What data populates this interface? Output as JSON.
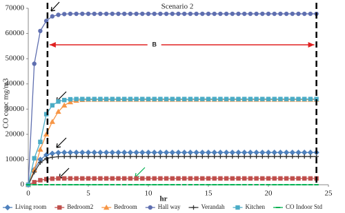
{
  "chart_data": {
    "type": "line",
    "title": "Scenario 2",
    "x_label": "hr",
    "y_label": "CO conc mg/m3",
    "annotation": "B",
    "x": [
      0,
      0.5,
      1,
      1.5,
      2,
      2.5,
      3,
      3.5,
      4,
      4.5,
      5,
      5.5,
      6,
      6.5,
      7,
      7.5,
      8,
      8.5,
      9,
      9.5,
      10,
      10.5,
      11,
      11.5,
      12,
      12.5,
      13,
      13.5,
      14,
      14.5,
      15,
      15.5,
      16,
      16.5,
      17,
      17.5,
      18,
      18.5,
      19,
      19.5,
      20,
      20.5,
      21,
      21.5,
      22,
      22.5,
      23,
      23.5,
      24
    ],
    "xlim": [
      0,
      25
    ],
    "xticks": [
      0,
      5,
      10,
      15,
      20,
      25
    ],
    "ylim": [
      0,
      70000
    ],
    "yticks": [
      0,
      10000,
      20000,
      30000,
      40000,
      50000,
      60000,
      70000
    ],
    "grid": false,
    "vlines": [
      1.6,
      24
    ],
    "series": [
      {
        "name": "Living room",
        "color": "#4f81bd",
        "marker": "diamond",
        "values": [
          0,
          6000,
          10000,
          11800,
          12400,
          12700,
          12800,
          12800,
          12800,
          12800,
          12800,
          12800,
          12800,
          12800,
          12800,
          12800,
          12800,
          12800,
          12800,
          12800,
          12800,
          12800,
          12800,
          12800,
          12800,
          12800,
          12800,
          12800,
          12800,
          12800,
          12800,
          12800,
          12800,
          12800,
          12800,
          12800,
          12800,
          12800,
          12800,
          12800,
          12800,
          12800,
          12800,
          12800,
          12800,
          12800,
          12800,
          12800,
          12800
        ]
      },
      {
        "name": "Bedroom2",
        "color": "#c0504d",
        "marker": "square",
        "values": [
          0,
          1000,
          1800,
          2200,
          2400,
          2500,
          2500,
          2500,
          2500,
          2500,
          2500,
          2500,
          2500,
          2500,
          2500,
          2500,
          2500,
          2500,
          2500,
          2500,
          2500,
          2500,
          2500,
          2500,
          2500,
          2500,
          2500,
          2500,
          2500,
          2500,
          2500,
          2500,
          2500,
          2500,
          2500,
          2500,
          2500,
          2500,
          2500,
          2500,
          2500,
          2500,
          2500,
          2500,
          2500,
          2500,
          2500,
          2500,
          2500
        ]
      },
      {
        "name": "Bedroom",
        "color": "#f79646",
        "marker": "triangle",
        "values": [
          0,
          6000,
          14000,
          20000,
          25000,
          29000,
          31500,
          32800,
          33400,
          33700,
          33800,
          33800,
          33800,
          33800,
          33800,
          33800,
          33800,
          33800,
          33800,
          33800,
          33800,
          33800,
          33800,
          33800,
          33800,
          33800,
          33800,
          33800,
          33800,
          33800,
          33800,
          33800,
          33800,
          33800,
          33800,
          33800,
          33800,
          33800,
          33800,
          33800,
          33800,
          33800,
          33800,
          33800,
          33800,
          33800,
          33800,
          33800,
          33800
        ]
      },
      {
        "name": "Hall way",
        "color": "#5f6fb0",
        "marker": "circle",
        "values": [
          0,
          48000,
          61000,
          65000,
          66800,
          67400,
          67700,
          67800,
          67800,
          67800,
          67800,
          67800,
          67800,
          67800,
          67800,
          67800,
          67800,
          67800,
          67800,
          67800,
          67800,
          67800,
          67800,
          67800,
          67800,
          67800,
          67800,
          67800,
          67800,
          67800,
          67800,
          67800,
          67800,
          67800,
          67800,
          67800,
          67800,
          67800,
          67800,
          67800,
          67800,
          67800,
          67800,
          67800,
          67800,
          67800,
          67800,
          67800,
          67800
        ]
      },
      {
        "name": "Verandah",
        "color": "#333333",
        "marker": "plus",
        "values": [
          0,
          5000,
          8800,
          10400,
          10900,
          11100,
          11200,
          11200,
          11200,
          11200,
          11200,
          11200,
          11200,
          11200,
          11200,
          11200,
          11200,
          11200,
          11200,
          11200,
          11200,
          11200,
          11200,
          11200,
          11200,
          11200,
          11200,
          11200,
          11200,
          11200,
          11200,
          11200,
          11200,
          11200,
          11200,
          11200,
          11200,
          11200,
          11200,
          11200,
          11200,
          11200,
          11200,
          11200,
          11200,
          11200,
          11200,
          11200,
          11200
        ]
      },
      {
        "name": "Kitchen",
        "color": "#4bacc6",
        "marker": "square",
        "values": [
          0,
          10500,
          17000,
          28000,
          31500,
          33000,
          33600,
          33900,
          34000,
          34000,
          34000,
          34000,
          34000,
          34000,
          34000,
          34000,
          34000,
          34000,
          34000,
          34000,
          34000,
          34000,
          34000,
          34000,
          34000,
          34000,
          34000,
          34000,
          34000,
          34000,
          34000,
          34000,
          34000,
          34000,
          34000,
          34000,
          34000,
          34000,
          34000,
          34000,
          34000,
          34000,
          34000,
          34000,
          34000,
          34000,
          34000,
          34000,
          34000
        ]
      },
      {
        "name": "CO Indoor Std",
        "color": "#00b050",
        "marker": "dash",
        "values": [
          10,
          10,
          10,
          10,
          10,
          10,
          10,
          10,
          10,
          10,
          10,
          10,
          10,
          10,
          10,
          10,
          10,
          10,
          10,
          10,
          10,
          10,
          10,
          10,
          10,
          10,
          10,
          10,
          10,
          10,
          10,
          10,
          10,
          10,
          10,
          10,
          10,
          10,
          10,
          10,
          10,
          10,
          10,
          10,
          10,
          10,
          10,
          10,
          10
        ]
      }
    ]
  }
}
